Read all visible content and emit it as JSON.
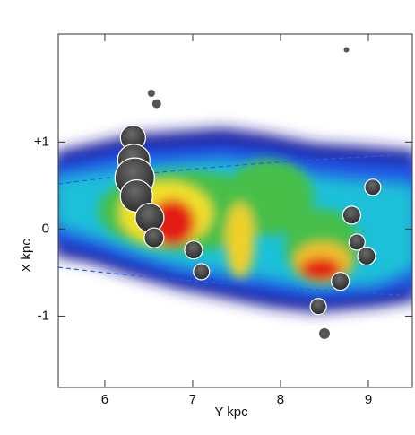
{
  "chart_data": {
    "type": "scatter",
    "x_label": "Y kpc",
    "y_label": "X kpc",
    "xlim": [
      5.47,
      9.5
    ],
    "ylim": [
      -1.82,
      2.24
    ],
    "xticks": [
      6,
      7,
      8,
      9
    ],
    "yticks": [
      {
        "value": 1,
        "label": "+1"
      },
      0,
      -1
    ],
    "series": [
      {
        "color": "#3a3a3a",
        "x": [
          6.32,
          6.33,
          6.34,
          6.36,
          6.51,
          6.56,
          7.01,
          7.1,
          9.05,
          8.81,
          8.87,
          8.98,
          8.68,
          8.43
        ],
        "values": [
          1.05,
          0.79,
          0.59,
          0.38,
          0.13,
          -0.1,
          -0.24,
          -0.49,
          0.48,
          0.16,
          -0.15,
          -0.31,
          -0.6,
          -0.89
        ],
        "sizes": [
          14,
          18,
          22,
          18,
          16,
          11,
          10,
          9,
          9,
          10,
          9,
          10,
          10,
          9
        ]
      },
      {
        "color": "#555555",
        "x": [
          6.53,
          6.59,
          8.75,
          8.5
        ],
        "values": [
          1.56,
          1.44,
          2.06,
          -1.2
        ],
        "sizes": [
          4,
          5,
          3,
          6
        ]
      }
    ]
  }
}
